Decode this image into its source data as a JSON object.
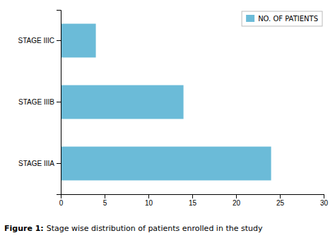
{
  "chart_data": {
    "type": "bar",
    "orientation": "horizontal",
    "categories": [
      "STAGE IIIA",
      "STAGE IIIB",
      "STAGE IIIC"
    ],
    "series": [
      {
        "name": "NO. OF PATIENTS",
        "color": "#6BBBD8",
        "values": [
          24,
          14,
          4
        ]
      }
    ],
    "xlim": [
      0,
      30
    ],
    "xticks": [
      0,
      5,
      10,
      15,
      20,
      25,
      30
    ],
    "grid": false,
    "legend": "upper-right",
    "annotations": [
      "Figure 1:",
      "Stage wise distribution of patients enrolled in the study"
    ]
  }
}
